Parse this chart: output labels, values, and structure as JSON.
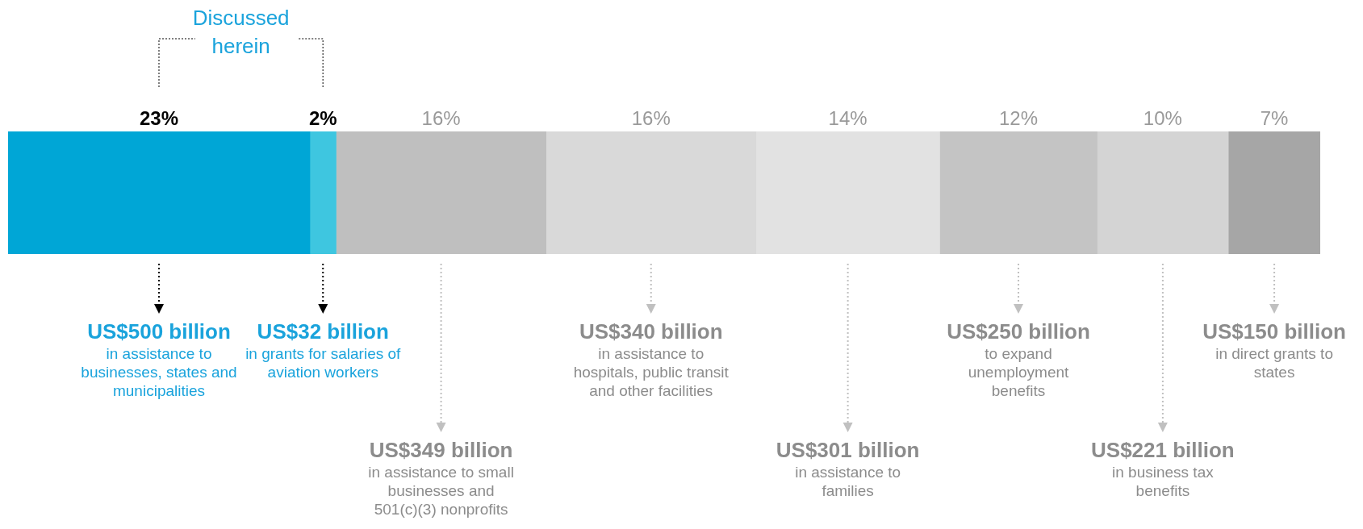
{
  "chart_data": {
    "type": "bar",
    "orientation": "horizontal",
    "stacked": true,
    "categories": [
      null
    ],
    "series": [
      {
        "color": "#00a6d6",
        "values": [
          23
        ],
        "value_labels": [
          "23%"
        ]
      },
      {
        "color": "#3ec6e0",
        "values": [
          2
        ],
        "value_labels": [
          "2%"
        ]
      },
      {
        "color": "#bfbfbf",
        "values": [
          16
        ],
        "value_labels": [
          "16%"
        ]
      },
      {
        "color": "#d9d9d9",
        "values": [
          16
        ],
        "value_labels": [
          "16%"
        ]
      },
      {
        "color": "#e2e2e2",
        "values": [
          14
        ],
        "value_labels": [
          "14%"
        ]
      },
      {
        "color": "#c4c4c4",
        "values": [
          12
        ],
        "value_labels": [
          "12%"
        ]
      },
      {
        "color": "#d4d4d4",
        "values": [
          10
        ],
        "value_labels": [
          "10%"
        ]
      },
      {
        "color": "#a6a6a6",
        "values": [
          7
        ],
        "value_labels": [
          "7%"
        ]
      }
    ],
    "annotations": [
      "US$500 billion",
      "in assistance to businesses, states and municipalities",
      "US$32 billion",
      "in grants for salaries of aviation workers",
      "US$349 billion",
      "in assistance to small businesses and 501(c)(3) nonprofits",
      "US$340 billion",
      "in assistance to hospitals, public transit and other facilities",
      "US$301 billion",
      "in assistance to families",
      "US$250 billion",
      "to expand unemployment benefits",
      "US$221 billion",
      "in business tax benefits",
      "US$150 billion",
      "in direct grants to states",
      "Discussed herein"
    ]
  }
}
